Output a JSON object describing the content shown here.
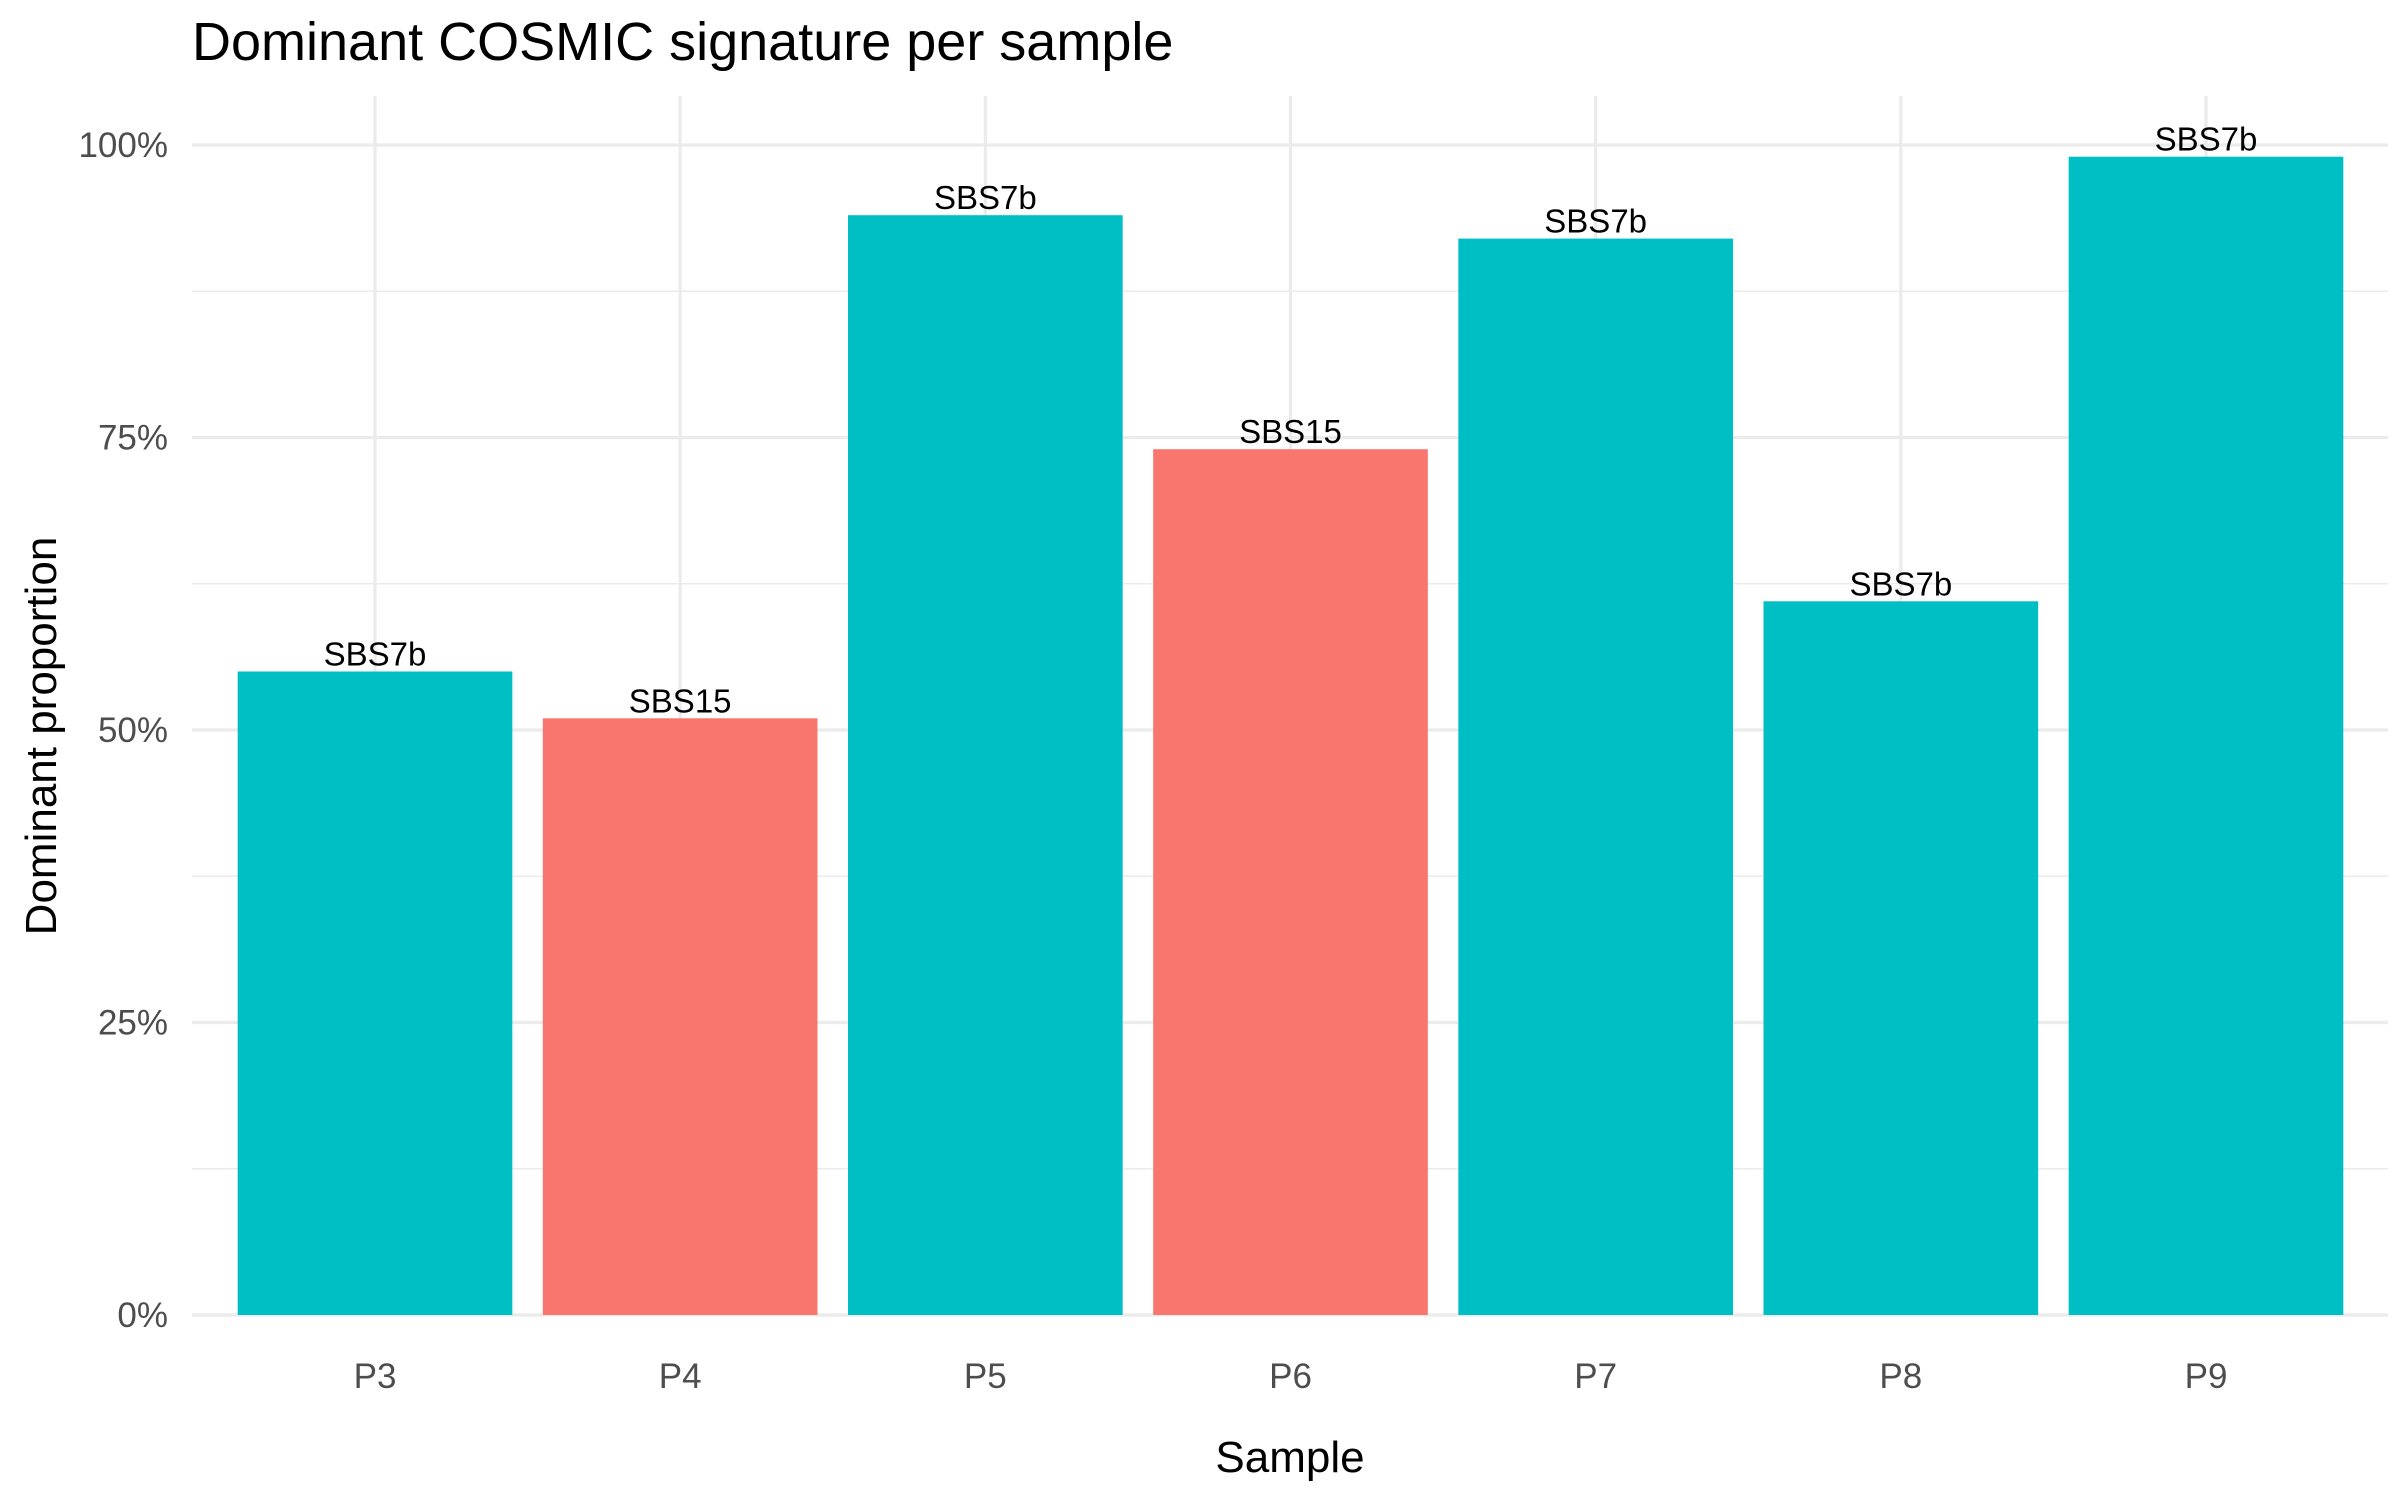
{
  "chart_data": {
    "type": "bar",
    "title": "Dominant COSMIC signature per sample",
    "xlabel": "Sample",
    "ylabel": "Dominant proportion",
    "ylim": [
      0,
      1
    ],
    "y_ticks": [
      0,
      0.25,
      0.5,
      0.75,
      1.0
    ],
    "y_tick_labels": [
      "0%",
      "25%",
      "50%",
      "75%",
      "100%"
    ],
    "grid": true,
    "legend": "none",
    "categories": [
      "P3",
      "P4",
      "P5",
      "P6",
      "P7",
      "P8",
      "P9"
    ],
    "values": [
      0.55,
      0.51,
      0.94,
      0.74,
      0.92,
      0.61,
      0.99
    ],
    "labels": [
      "SBS7b",
      "SBS15",
      "SBS7b",
      "SBS15",
      "SBS7b",
      "SBS7b",
      "SBS7b"
    ],
    "colors": {
      "SBS7b": "#00BFC4",
      "SBS15": "#F8766D"
    }
  }
}
